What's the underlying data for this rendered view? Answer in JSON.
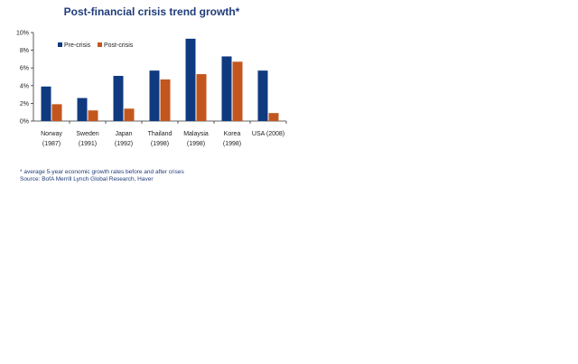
{
  "colors": {
    "pre": "#0f3a80",
    "post": "#c3561e",
    "title": "#1f3c7a"
  },
  "chart_data": {
    "type": "bar",
    "title": "Post-financial crisis trend growth*",
    "xlabel": "",
    "ylabel": "",
    "ylim": [
      0,
      10
    ],
    "yticks": [
      "0%",
      "2%",
      "4%",
      "6%",
      "8%",
      "10%"
    ],
    "legend_position": "top-left",
    "grid": false,
    "categories": [
      [
        "Norway",
        "(1987)"
      ],
      [
        "Sweden",
        "(1991)"
      ],
      [
        "Japan",
        "(1992)"
      ],
      [
        "Thailand",
        "(1998)"
      ],
      [
        "Malaysia",
        "(1998)"
      ],
      [
        "Korea",
        "(1998)"
      ],
      [
        "USA (2008)"
      ]
    ],
    "series": [
      {
        "name": "Pre-crisis",
        "values": [
          3.9,
          2.6,
          5.1,
          5.7,
          9.3,
          7.3,
          5.7
        ]
      },
      {
        "name": "Post-crisis",
        "values": [
          1.9,
          1.2,
          1.4,
          4.7,
          5.3,
          6.7,
          0.9
        ]
      }
    ]
  },
  "footnotes": {
    "note": "* average 5-year economic growth rates before and after crises",
    "source": "Source: BofA Merrill Lynch Global Research, Haver"
  }
}
